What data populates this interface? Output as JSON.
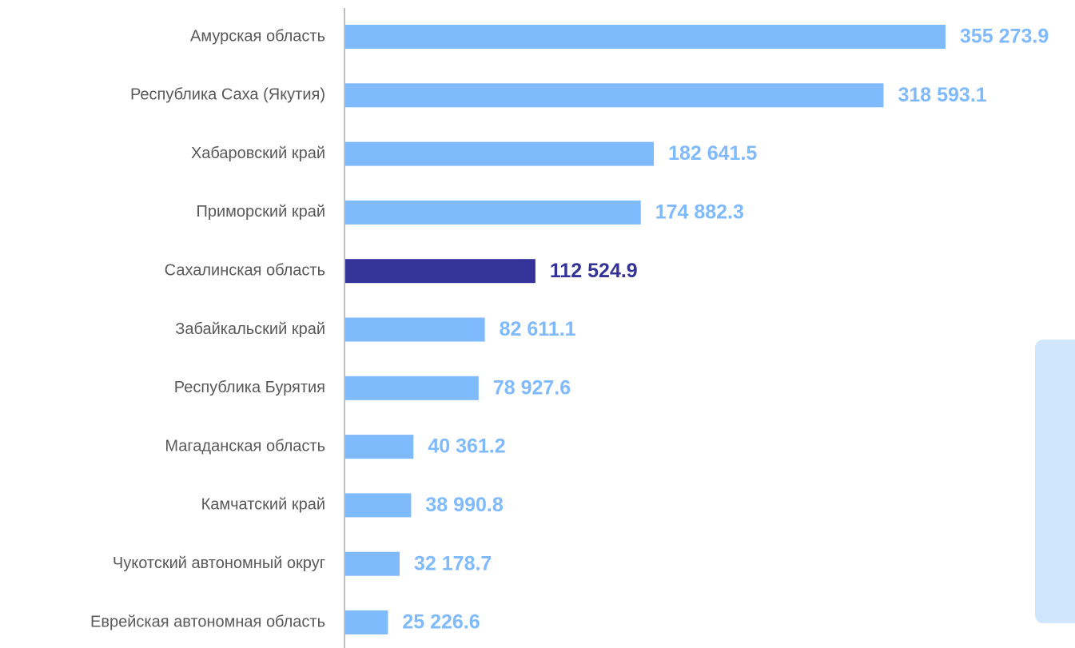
{
  "chart_data": {
    "type": "bar",
    "orientation": "horizontal",
    "categories": [
      "Амурская область",
      "Республика Саха (Якутия)",
      "Хабаровский край",
      "Приморский край",
      "Сахалинская область",
      "Забайкальский край",
      "Республика Бурятия",
      "Магаданская область",
      "Камчатский край",
      "Чукотский автономный округ",
      "Еврейская автономная область"
    ],
    "values": [
      355273.9,
      318593.1,
      182641.5,
      174882.3,
      112524.9,
      82611.1,
      78927.6,
      40361.2,
      38990.8,
      32178.7,
      25226.6
    ],
    "value_labels": [
      "355 273.9",
      "318 593.1",
      "182 641.5",
      "174 882.3",
      "112 524.9",
      "82 611.1",
      "78 927.6",
      "40 361.2",
      "38 990.8",
      "32 178.7",
      "25 226.6"
    ],
    "colors": [
      "#7fbafc",
      "#7fbafc",
      "#7fbafc",
      "#7fbafc",
      "#333399",
      "#7fbafc",
      "#7fbafc",
      "#7fbafc",
      "#7fbafc",
      "#7fbafc",
      "#7fbafc"
    ]
  }
}
